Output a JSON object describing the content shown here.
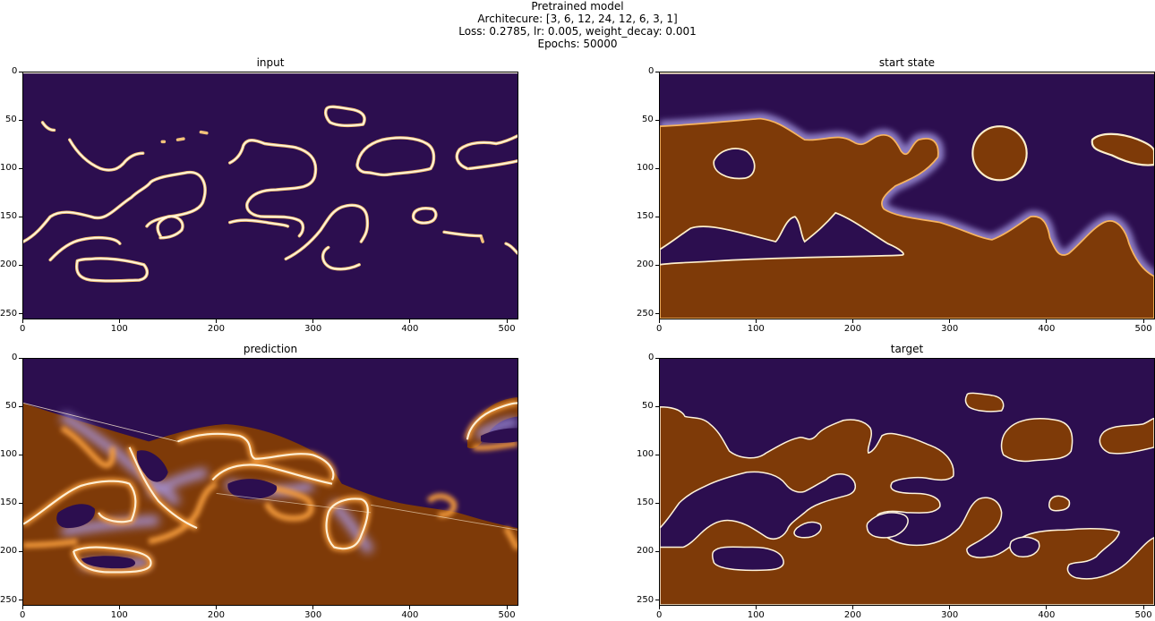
{
  "figure": {
    "suptitle_lines": [
      "Pretrained model",
      "Architecure: [3, 6, 12, 24, 12, 6, 3, 1]",
      "Loss: 0.2785, lr: 0.005, weight_decay: 0.001",
      "Epochs: 50000"
    ]
  },
  "colors": {
    "background": "#2c0e4f",
    "fill": "#7e3a08",
    "edge": "#fff0cc",
    "glow": "#f28a1e",
    "halo": "#8a7ad0"
  },
  "chart_data": [
    {
      "type": "heatmap",
      "title": "input",
      "xticks": [
        0,
        100,
        200,
        300,
        400,
        500
      ],
      "yticks": [
        0,
        50,
        100,
        150,
        200,
        250
      ],
      "xlim": [
        0,
        512
      ],
      "ylim": [
        256,
        0
      ],
      "colormap": "inferno-like (dark purple → white)"
    },
    {
      "type": "heatmap",
      "title": "start state",
      "xticks": [
        0,
        100,
        200,
        300,
        400,
        500
      ],
      "yticks": [
        0,
        50,
        100,
        150,
        200,
        250
      ],
      "xlim": [
        0,
        512
      ],
      "ylim": [
        256,
        0
      ],
      "colormap": "PuOr-like"
    },
    {
      "type": "heatmap",
      "title": "prediction",
      "xticks": [
        0,
        100,
        200,
        300,
        400,
        500
      ],
      "yticks": [
        0,
        50,
        100,
        150,
        200,
        250
      ],
      "xlim": [
        0,
        512
      ],
      "ylim": [
        256,
        0
      ],
      "colormap": "PuOr-like"
    },
    {
      "type": "heatmap",
      "title": "target",
      "xticks": [
        0,
        100,
        200,
        300,
        400,
        500
      ],
      "yticks": [
        0,
        50,
        100,
        150,
        200,
        250
      ],
      "xlim": [
        0,
        512
      ],
      "ylim": [
        256,
        0
      ],
      "colormap": "PuOr-like"
    }
  ]
}
